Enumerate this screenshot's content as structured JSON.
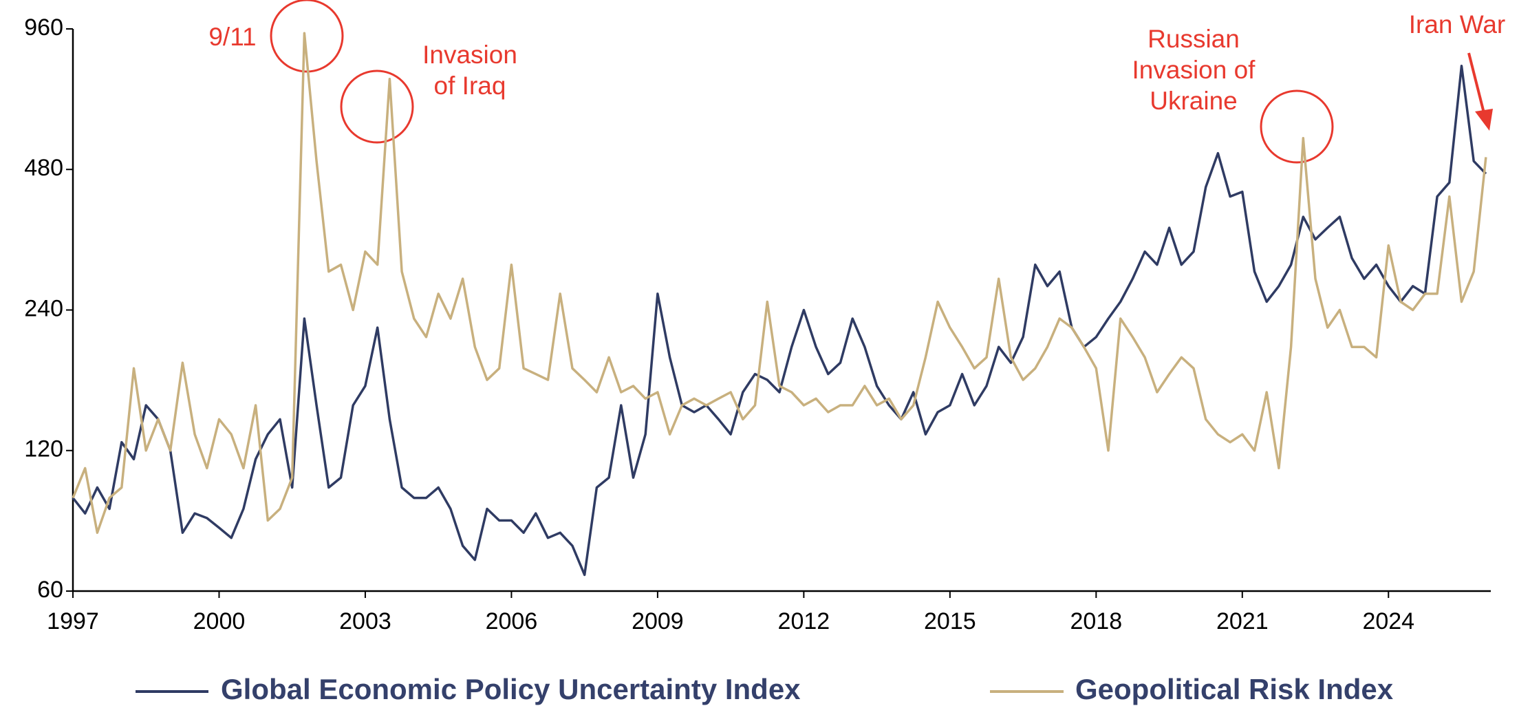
{
  "chart_data": {
    "type": "line",
    "x": [
      1997,
      1997.25,
      1997.5,
      1997.75,
      1998,
      1998.25,
      1998.5,
      1998.75,
      1999,
      1999.25,
      1999.5,
      1999.75,
      2000,
      2000.25,
      2000.5,
      2000.75,
      2001,
      2001.25,
      2001.5,
      2001.75,
      2002,
      2002.25,
      2002.5,
      2002.75,
      2003,
      2003.25,
      2003.5,
      2003.75,
      2004,
      2004.25,
      2004.5,
      2004.75,
      2005,
      2005.25,
      2005.5,
      2005.75,
      2006,
      2006.25,
      2006.5,
      2006.75,
      2007,
      2007.25,
      2007.5,
      2007.75,
      2008,
      2008.25,
      2008.5,
      2008.75,
      2009,
      2009.25,
      2009.5,
      2009.75,
      2010,
      2010.25,
      2010.5,
      2010.75,
      2011,
      2011.25,
      2011.5,
      2011.75,
      2012,
      2012.25,
      2012.5,
      2012.75,
      2013,
      2013.25,
      2013.5,
      2013.75,
      2014,
      2014.25,
      2014.5,
      2014.75,
      2015,
      2015.25,
      2015.5,
      2015.75,
      2016,
      2016.25,
      2016.5,
      2016.75,
      2017,
      2017.25,
      2017.5,
      2017.75,
      2018,
      2018.25,
      2018.5,
      2018.75,
      2019,
      2019.25,
      2019.5,
      2019.75,
      2020,
      2020.25,
      2020.5,
      2020.75,
      2021,
      2021.25,
      2021.5,
      2021.75,
      2022,
      2022.25,
      2022.5,
      2022.75,
      2023,
      2023.25,
      2023.5,
      2023.75,
      2024,
      2024.25,
      2024.5,
      2024.75,
      2025,
      2025.25,
      2025.5,
      2025.75,
      2026
    ],
    "series": [
      {
        "name": "Global Economic Policy Uncertainty Index",
        "color": "#2f3b63",
        "values": [
          95,
          88,
          100,
          90,
          125,
          115,
          150,
          140,
          120,
          80,
          88,
          86,
          82,
          78,
          90,
          115,
          130,
          140,
          100,
          230,
          150,
          100,
          105,
          150,
          165,
          220,
          140,
          100,
          95,
          95,
          100,
          90,
          75,
          70,
          90,
          85,
          85,
          80,
          88,
          78,
          80,
          75,
          65,
          100,
          105,
          150,
          105,
          130,
          260,
          190,
          150,
          145,
          150,
          140,
          130,
          160,
          175,
          170,
          160,
          200,
          240,
          200,
          175,
          185,
          230,
          200,
          165,
          150,
          140,
          160,
          130,
          145,
          150,
          175,
          150,
          165,
          200,
          185,
          210,
          300,
          270,
          290,
          220,
          200,
          210,
          230,
          250,
          280,
          320,
          300,
          360,
          300,
          320,
          440,
          520,
          420,
          430,
          290,
          250,
          270,
          300,
          380,
          340,
          360,
          380,
          310,
          280,
          300,
          270,
          250,
          270,
          260,
          420,
          450,
          800,
          500,
          470
        ]
      },
      {
        "name": "Geopolitical Risk Index",
        "color": "#c8b07e",
        "values": [
          95,
          110,
          80,
          95,
          100,
          180,
          120,
          140,
          120,
          185,
          130,
          110,
          140,
          130,
          110,
          150,
          85,
          90,
          105,
          940,
          500,
          290,
          300,
          240,
          320,
          300,
          750,
          290,
          230,
          210,
          260,
          230,
          280,
          200,
          170,
          180,
          300,
          180,
          175,
          170,
          260,
          180,
          170,
          160,
          190,
          160,
          165,
          155,
          160,
          130,
          150,
          155,
          150,
          155,
          160,
          140,
          150,
          250,
          165,
          160,
          150,
          155,
          145,
          150,
          150,
          165,
          150,
          155,
          140,
          150,
          190,
          250,
          220,
          200,
          180,
          190,
          280,
          190,
          170,
          180,
          200,
          230,
          220,
          200,
          180,
          120,
          230,
          210,
          190,
          160,
          175,
          190,
          180,
          140,
          130,
          125,
          130,
          120,
          160,
          110,
          200,
          560,
          280,
          220,
          240,
          200,
          200,
          190,
          330,
          250,
          240,
          260,
          260,
          420,
          250,
          290,
          510
        ]
      }
    ],
    "xlim": [
      1997,
      2026.1
    ],
    "xticks": [
      1997,
      2000,
      2003,
      2006,
      2009,
      2012,
      2015,
      2018,
      2021,
      2024
    ],
    "ylim": [
      60,
      960
    ],
    "yticks": [
      60,
      120,
      240,
      480,
      960
    ],
    "log_y": true,
    "annotations": [
      {
        "text": [
          "9/11"
        ]
      },
      {
        "text": [
          "Invasion",
          "of Iraq"
        ]
      },
      {
        "text": [
          "Russian",
          "Invasion of",
          "Ukraine"
        ]
      },
      {
        "text": [
          "Iran War"
        ]
      }
    ]
  }
}
